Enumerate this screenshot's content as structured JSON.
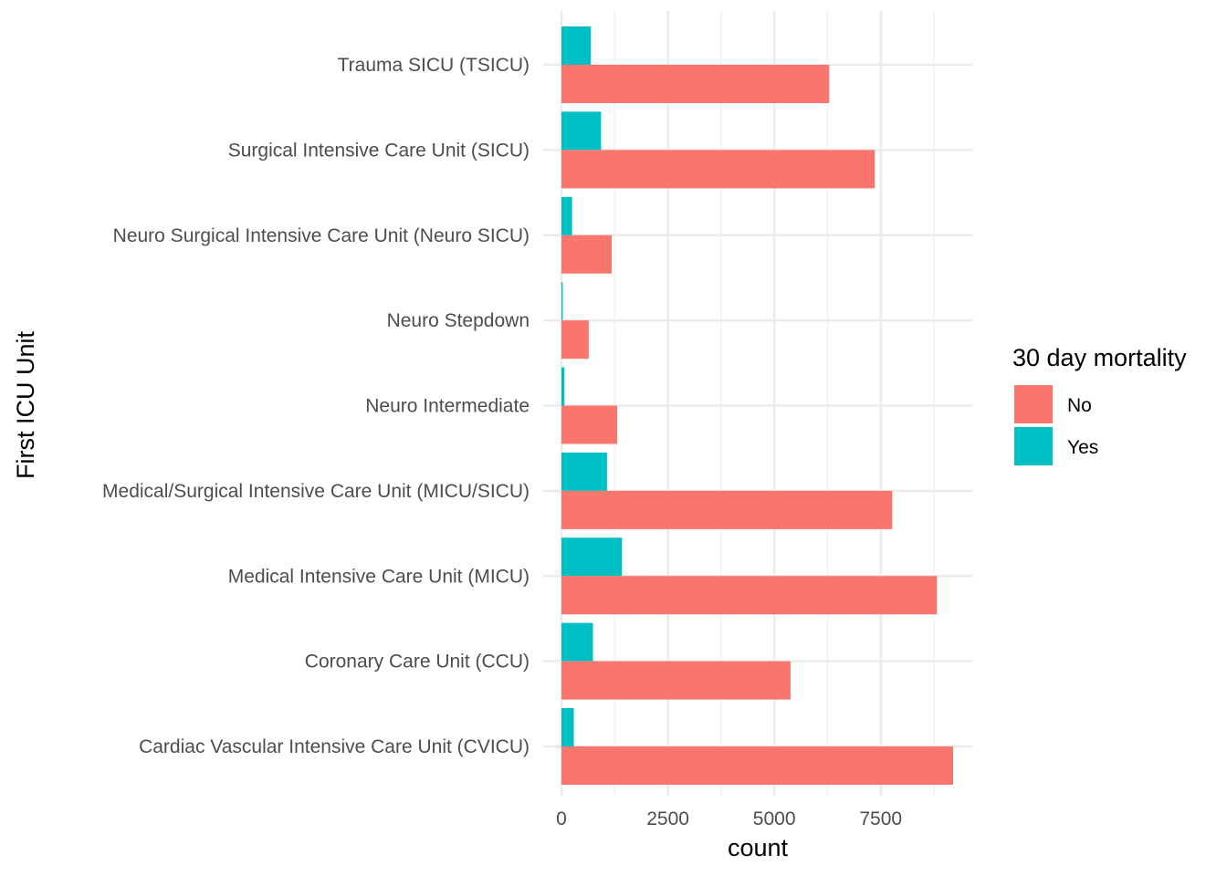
{
  "chart_data": {
    "type": "bar",
    "orientation": "horizontal",
    "grouped": true,
    "categories": [
      "Cardiac Vascular Intensive Care Unit (CVICU)",
      "Coronary Care Unit (CCU)",
      "Medical Intensive Care Unit (MICU)",
      "Medical/Surgical Intensive Care Unit (MICU/SICU)",
      "Neuro Intermediate",
      "Neuro Stepdown",
      "Neuro Surgical Intensive Care Unit (Neuro SICU)",
      "Surgical Intensive Care Unit (SICU)",
      "Trauma SICU (TSICU)"
    ],
    "series": [
      {
        "name": "No",
        "color": "#F8766D",
        "values": [
          9200,
          5380,
          8820,
          7770,
          1310,
          640,
          1180,
          7360,
          6290
        ]
      },
      {
        "name": "Yes",
        "color": "#00BFC4",
        "values": [
          290,
          740,
          1420,
          1070,
          70,
          30,
          250,
          930,
          690
        ]
      }
    ],
    "xlabel": "count",
    "ylabel": "First ICU Unit",
    "xlim": [
      0,
      9650
    ],
    "xticks": [
      0,
      2500,
      5000,
      7500
    ],
    "xtick_labels": [
      "0",
      "2500",
      "5000",
      "7500"
    ],
    "grid": true,
    "legend": {
      "title": "30 day mortality",
      "placement": "right",
      "entries": [
        "No",
        "Yes"
      ]
    }
  }
}
